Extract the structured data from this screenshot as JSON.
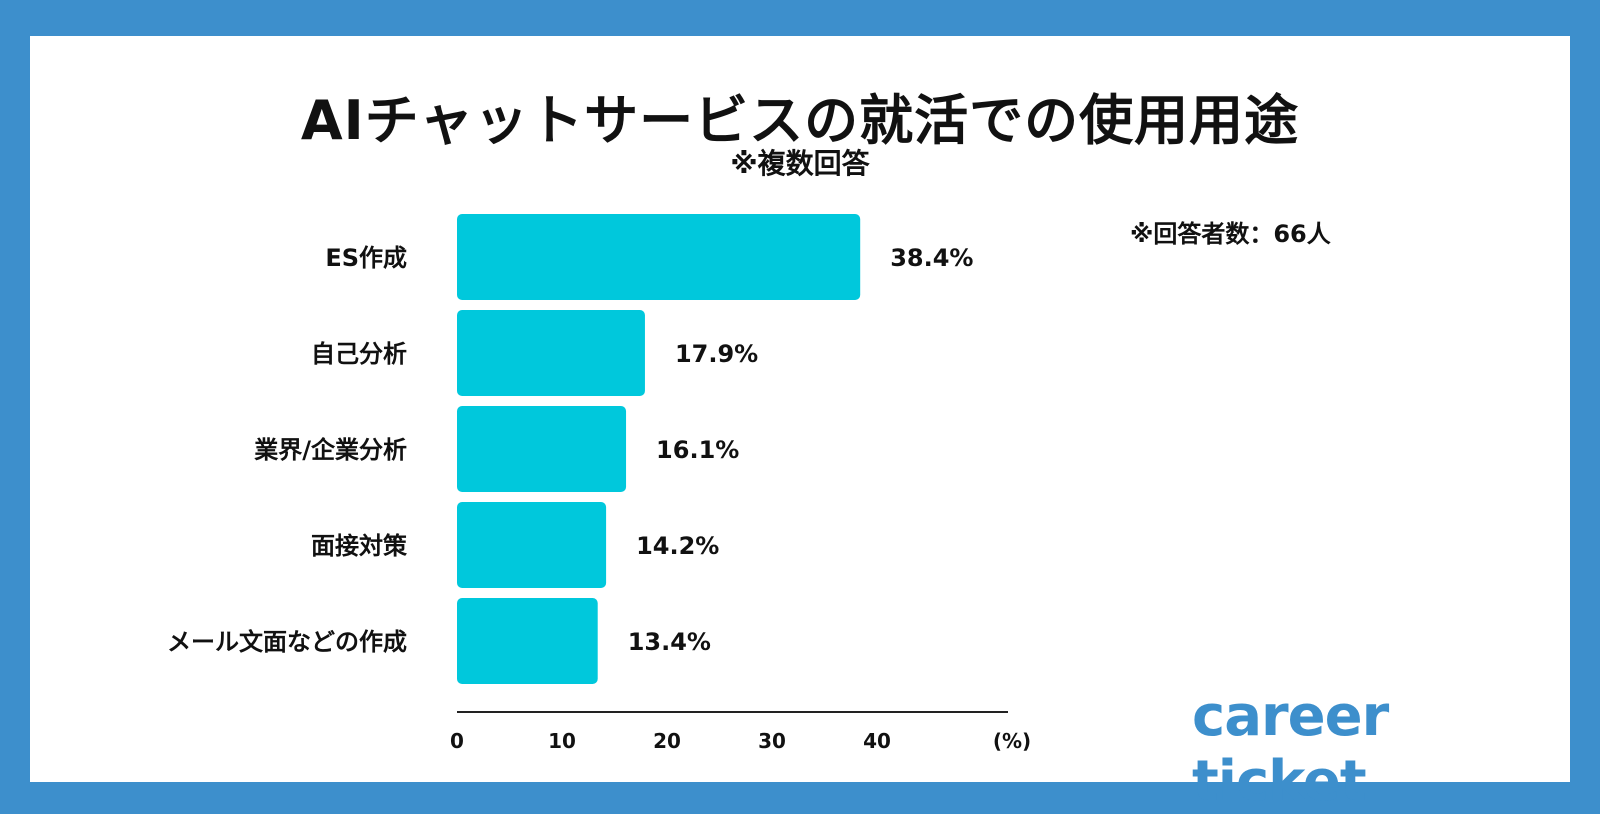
{
  "colors": {
    "frame": "#3d8fcc",
    "background": "#ffffff",
    "bar": "#00c8dc",
    "brand": "#3d8fcc",
    "text": "#111111"
  },
  "header": {
    "title": "AIチャットサービスの就活での使用用途",
    "subtitle": "※複数回答"
  },
  "note": "※回答者数：66人",
  "brand": "career ticket",
  "chart_data": {
    "type": "bar",
    "orientation": "horizontal",
    "categories": [
      "ES作成",
      "自己分析",
      "業界/企業分析",
      "面接対策",
      "メール文面などの作成"
    ],
    "values": [
      38.4,
      17.9,
      16.1,
      14.2,
      13.4
    ],
    "value_labels": [
      "38.4%",
      "17.9%",
      "16.1%",
      "14.2%",
      "13.4%"
    ],
    "xticks": [
      0,
      10,
      20,
      30,
      40
    ],
    "xtick_labels": [
      "0",
      "10",
      "20",
      "30",
      "40"
    ],
    "xunit": "(%)",
    "xlim": [
      0,
      52.5
    ],
    "title": "AIチャットサービスの就活での使用用途",
    "xlabel": "(%)",
    "ylabel": ""
  }
}
